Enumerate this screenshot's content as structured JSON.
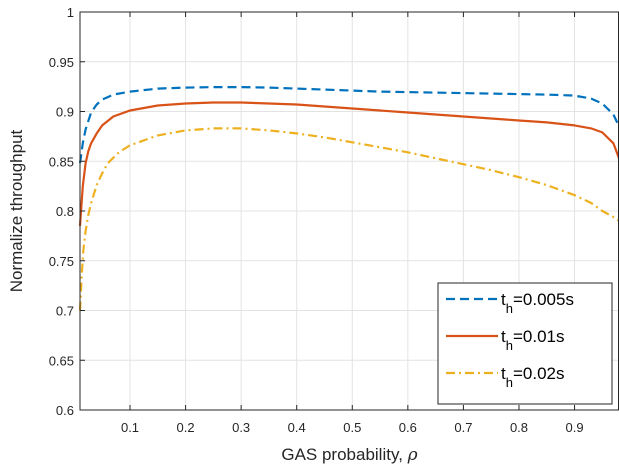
{
  "chart_data": {
    "type": "line",
    "xlabel_text": "GAS probability, ",
    "xlabel_symbol": "ρ",
    "ylabel": "Normalize throughput",
    "xlim": [
      0.01,
      0.98
    ],
    "ylim": [
      0.6,
      1.0
    ],
    "x_ticks": [
      0.1,
      0.2,
      0.3,
      0.4,
      0.5,
      0.6,
      0.7,
      0.8,
      0.9
    ],
    "x_tick_labels": [
      "0.1",
      "0.2",
      "0.3",
      "0.4",
      "0.5",
      "0.6",
      "0.7",
      "0.8",
      "0.9"
    ],
    "y_ticks": [
      0.6,
      0.65,
      0.7,
      0.75,
      0.8,
      0.85,
      0.9,
      0.95,
      1.0
    ],
    "y_tick_labels": [
      "0.6",
      "0.65",
      "0.7",
      "0.75",
      "0.8",
      "0.85",
      "0.9",
      "0.95",
      "1"
    ],
    "grid": true,
    "legend_position": "bottom-right",
    "series": [
      {
        "legend_prefix": "t",
        "legend_sub": "h",
        "legend_suffix": "=0.005s",
        "color": "#0072BD",
        "dash": "dashed",
        "x": [
          0.01,
          0.015,
          0.02,
          0.03,
          0.04,
          0.05,
          0.07,
          0.1,
          0.15,
          0.2,
          0.25,
          0.3,
          0.35,
          0.4,
          0.45,
          0.5,
          0.55,
          0.6,
          0.65,
          0.7,
          0.75,
          0.8,
          0.85,
          0.9,
          0.93,
          0.95,
          0.97,
          0.98
        ],
        "y": [
          0.848,
          0.868,
          0.882,
          0.899,
          0.907,
          0.912,
          0.917,
          0.92,
          0.923,
          0.924,
          0.9245,
          0.9245,
          0.924,
          0.923,
          0.922,
          0.921,
          0.92,
          0.9195,
          0.919,
          0.9185,
          0.918,
          0.9175,
          0.917,
          0.916,
          0.913,
          0.908,
          0.897,
          0.885
        ]
      },
      {
        "legend_prefix": "t",
        "legend_sub": "h",
        "legend_suffix": "=0.01s",
        "color": "#D95319",
        "dash": "solid",
        "x": [
          0.01,
          0.015,
          0.02,
          0.025,
          0.03,
          0.04,
          0.05,
          0.07,
          0.1,
          0.15,
          0.2,
          0.25,
          0.3,
          0.35,
          0.4,
          0.45,
          0.5,
          0.55,
          0.6,
          0.65,
          0.7,
          0.75,
          0.8,
          0.85,
          0.9,
          0.93,
          0.95,
          0.97,
          0.98
        ],
        "y": [
          0.785,
          0.825,
          0.848,
          0.86,
          0.868,
          0.878,
          0.886,
          0.895,
          0.901,
          0.906,
          0.908,
          0.909,
          0.909,
          0.908,
          0.907,
          0.905,
          0.903,
          0.901,
          0.899,
          0.897,
          0.895,
          0.893,
          0.891,
          0.889,
          0.886,
          0.883,
          0.879,
          0.868,
          0.853
        ]
      },
      {
        "legend_prefix": "t",
        "legend_sub": "h",
        "legend_suffix": "=0.02s",
        "color": "#EDB120",
        "dash": "dashdot",
        "x": [
          0.01,
          0.013,
          0.016,
          0.02,
          0.025,
          0.03,
          0.04,
          0.05,
          0.06,
          0.08,
          0.1,
          0.15,
          0.2,
          0.25,
          0.3,
          0.35,
          0.4,
          0.45,
          0.5,
          0.55,
          0.6,
          0.65,
          0.7,
          0.75,
          0.8,
          0.85,
          0.9,
          0.93,
          0.95,
          0.97,
          0.98
        ],
        "y": [
          0.7,
          0.735,
          0.76,
          0.78,
          0.796,
          0.808,
          0.826,
          0.838,
          0.848,
          0.859,
          0.866,
          0.876,
          0.881,
          0.883,
          0.883,
          0.881,
          0.878,
          0.874,
          0.869,
          0.864,
          0.859,
          0.853,
          0.847,
          0.841,
          0.834,
          0.826,
          0.816,
          0.808,
          0.8,
          0.794,
          0.79
        ]
      }
    ]
  }
}
